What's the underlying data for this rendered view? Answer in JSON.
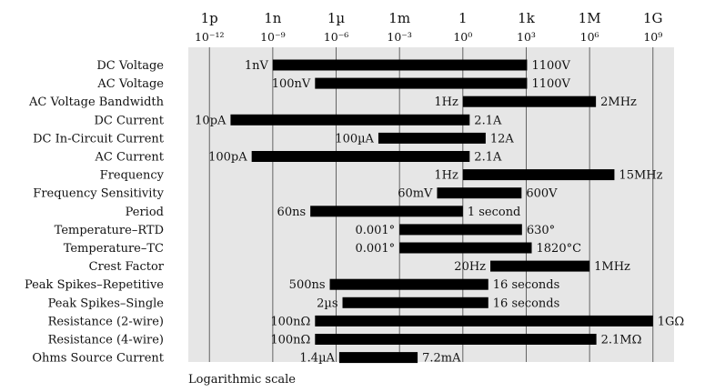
{
  "chart_data": {
    "type": "bar",
    "orientation": "horizontal-range",
    "x_scale": "log",
    "xlim": [
      1e-13,
      10000000000.0
    ],
    "grid": true,
    "background": "#e6e6e6",
    "bar_color": "#000000",
    "top_tick_labels": [
      "1p",
      "1n",
      "1µ",
      "1m",
      "1",
      "1k",
      "1M",
      "1G"
    ],
    "power_tick_labels": [
      "10⁻¹²",
      "10⁻⁹",
      "10⁻⁶",
      "10⁻³",
      "10⁰",
      "10³",
      "10⁶",
      "10⁹"
    ],
    "tick_values": [
      1e-12,
      1e-09,
      1e-06,
      0.001,
      1,
      1000.0,
      1000000.0,
      1000000000.0
    ],
    "caption": "Logarithmic scale",
    "rows": [
      {
        "label": "DC Voltage",
        "min": 1e-09,
        "max": 1100,
        "min_label": "1nV",
        "max_label": "1100V"
      },
      {
        "label": "AC Voltage",
        "min": 1e-07,
        "max": 1100,
        "min_label": "100nV",
        "max_label": "1100V"
      },
      {
        "label": "AC Voltage Bandwidth",
        "min": 1,
        "max": 2000000.0,
        "min_label": "1Hz",
        "max_label": "2MHz"
      },
      {
        "label": "DC Current",
        "min": 1e-11,
        "max": 2.1,
        "min_label": "10pA",
        "max_label": "2.1A"
      },
      {
        "label": "DC In-Circuit Current",
        "min": 0.0001,
        "max": 12,
        "min_label": "100µA",
        "max_label": "12A"
      },
      {
        "label": "AC Current",
        "min": 1e-10,
        "max": 2.1,
        "min_label": "100pA",
        "max_label": "2.1A"
      },
      {
        "label": "Frequency",
        "min": 1,
        "max": 15000000.0,
        "min_label": "1Hz",
        "max_label": "15MHz"
      },
      {
        "label": "Frequency Sensitivity",
        "min": 0.06,
        "max": 600,
        "min_label": "60mV",
        "max_label": "600V"
      },
      {
        "label": "Period",
        "min": 6e-08,
        "max": 1,
        "min_label": "60ns",
        "max_label": "1 second"
      },
      {
        "label": "Temperature–RTD",
        "min": 0.001,
        "max": 630,
        "min_label": "0.001°",
        "max_label": "630°"
      },
      {
        "label": "Temperature–TC",
        "min": 0.001,
        "max": 1820,
        "min_label": "0.001°",
        "max_label": "1820°C"
      },
      {
        "label": "Crest Factor",
        "min": 20,
        "max": 1000000.0,
        "min_label": "20Hz",
        "max_label": "1MHz"
      },
      {
        "label": "Peak Spikes–Repetitive",
        "min": 5e-07,
        "max": 16,
        "min_label": "500ns",
        "max_label": "16 seconds"
      },
      {
        "label": "Peak Spikes–Single",
        "min": 2e-06,
        "max": 16,
        "min_label": "2µs",
        "max_label": "16 seconds"
      },
      {
        "label": "Resistance (2-wire)",
        "min": 1e-07,
        "max": 1000000000.0,
        "min_label": "100nΩ",
        "max_label": "1GΩ"
      },
      {
        "label": "Resistance (4-wire)",
        "min": 1e-07,
        "max": 2100000.0,
        "min_label": "100nΩ",
        "max_label": "2.1MΩ"
      },
      {
        "label": "Ohms Source Current",
        "min": 1.4e-06,
        "max": 0.0072,
        "min_label": "1.4µA",
        "max_label": "7.2mA"
      }
    ]
  }
}
